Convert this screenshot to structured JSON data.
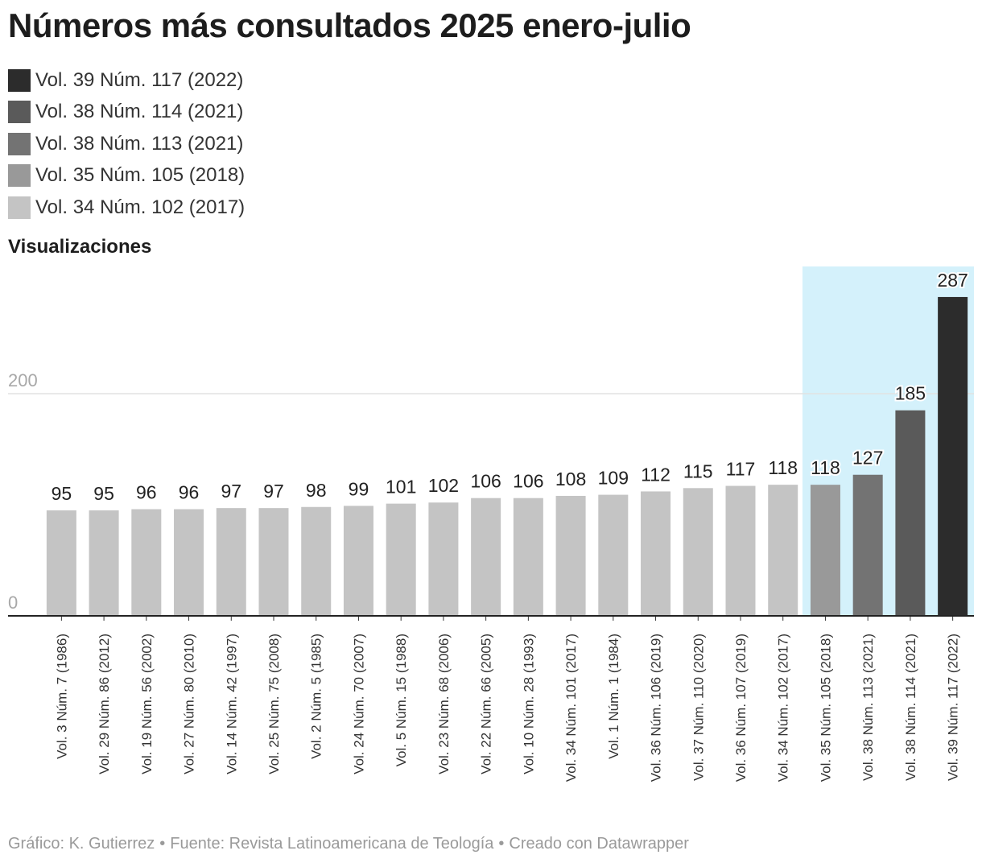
{
  "title": "Números más consultados 2025 enero-julio",
  "legend": [
    {
      "label": "Vol. 39 Núm. 117 (2022)",
      "color": "#2c2c2c"
    },
    {
      "label": "Vol. 38 Núm. 114 (2021)",
      "color": "#5a5a5a"
    },
    {
      "label": "Vol. 38 Núm. 113 (2021)",
      "color": "#737373"
    },
    {
      "label": "Vol. 35 Núm. 105 (2018)",
      "color": "#999999"
    },
    {
      "label": "Vol. 34 Núm. 102 (2017)",
      "color": "#c4c4c4"
    }
  ],
  "footer": {
    "credit": "Gráfico: K. Gutierrez",
    "source": "Fuente: Revista Latinoamericana de Teología",
    "tool": "Creado con Datawrapper"
  },
  "chart_data": {
    "type": "bar",
    "ylabel": "Visualizaciones",
    "xlabel": "",
    "ylim": [
      0,
      300
    ],
    "yticks": [
      0,
      200
    ],
    "grid": true,
    "highlight_color": "#d4f1fb",
    "highlight_categories": [
      "Vol. 35 Núm. 105 (2018)",
      "Vol. 38 Núm. 113 (2021)",
      "Vol. 38 Núm. 114 (2021)",
      "Vol. 39 Núm. 117 (2022)"
    ],
    "categories": [
      "Vol. 3 Núm. 7 (1986)",
      "Vol. 29 Núm. 86 (2012)",
      "Vol. 19 Núm. 56 (2002)",
      "Vol. 27 Núm. 80 (2010)",
      "Vol. 14 Núm. 42 (1997)",
      "Vol. 25 Núm. 75 (2008)",
      "Vol. 2 Núm. 5 (1985)",
      "Vol. 24 Núm. 70 (2007)",
      "Vol. 5 Núm. 15 (1988)",
      "Vol. 23 Núm. 68 (2006)",
      "Vol. 22 Núm. 66 (2005)",
      "Vol. 10 Núm. 28 (1993)",
      "Vol. 34 Núm. 101 (2017)",
      "Vol. 1 Núm. 1 (1984)",
      "Vol. 36 Núm. 106 (2019)",
      "Vol. 37 Núm. 110 (2020)",
      "Vol. 36 Núm. 107 (2019)",
      "Vol. 34 Núm. 102 (2017)",
      "Vol. 35 Núm. 105 (2018)",
      "Vol. 38 Núm. 113 (2021)",
      "Vol. 38 Núm. 114 (2021)",
      "Vol. 39 Núm. 117 (2022)"
    ],
    "values": [
      95,
      95,
      96,
      96,
      97,
      97,
      98,
      99,
      101,
      102,
      106,
      106,
      108,
      109,
      112,
      115,
      117,
      118,
      118,
      127,
      185,
      287
    ],
    "colors": [
      "#c4c4c4",
      "#c4c4c4",
      "#c4c4c4",
      "#c4c4c4",
      "#c4c4c4",
      "#c4c4c4",
      "#c4c4c4",
      "#c4c4c4",
      "#c4c4c4",
      "#c4c4c4",
      "#c4c4c4",
      "#c4c4c4",
      "#c4c4c4",
      "#c4c4c4",
      "#c4c4c4",
      "#c4c4c4",
      "#c4c4c4",
      "#c4c4c4",
      "#999999",
      "#737373",
      "#5a5a5a",
      "#2c2c2c"
    ]
  }
}
